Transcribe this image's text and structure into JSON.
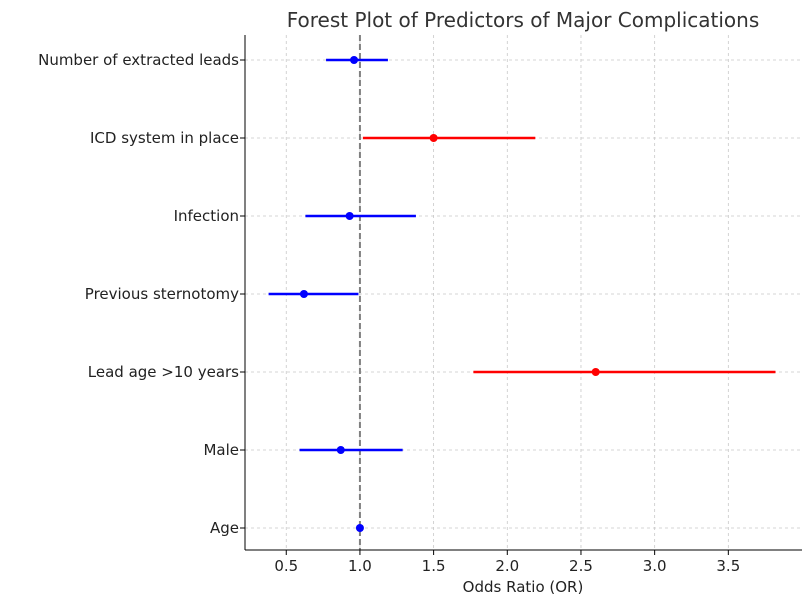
{
  "chart_data": {
    "type": "forest",
    "title": "Forest Plot of Predictors of Major Complications",
    "xlabel": "Odds Ratio (OR)",
    "ylabel": "",
    "xlim": [
      0.22,
      4.0
    ],
    "xticks": [
      0.5,
      1.0,
      1.5,
      2.0,
      2.5,
      3.0,
      3.5
    ],
    "xtick_labels": [
      "0.5",
      "1.0",
      "1.5",
      "2.0",
      "2.5",
      "3.0",
      "3.5"
    ],
    "reference_line": 1.0,
    "grid": true,
    "significant_color": "#ff0000",
    "nonsignificant_color": "#0000ff",
    "predictors": [
      {
        "label": "Number of extracted leads",
        "or": 0.96,
        "lower": 0.77,
        "upper": 1.19,
        "significant": false
      },
      {
        "label": "ICD system in place",
        "or": 1.5,
        "lower": 1.02,
        "upper": 2.19,
        "significant": true
      },
      {
        "label": "Infection",
        "or": 0.93,
        "lower": 0.63,
        "upper": 1.38,
        "significant": false
      },
      {
        "label": "Previous sternotomy",
        "or": 0.62,
        "lower": 0.38,
        "upper": 0.99,
        "significant": false
      },
      {
        "label": "Lead age >10 years",
        "or": 2.6,
        "lower": 1.77,
        "upper": 3.82,
        "significant": true
      },
      {
        "label": "Male",
        "or": 0.87,
        "lower": 0.59,
        "upper": 1.29,
        "significant": false
      },
      {
        "label": "Age",
        "or": 1.0,
        "lower": 0.99,
        "upper": 1.01,
        "significant": false
      }
    ]
  }
}
